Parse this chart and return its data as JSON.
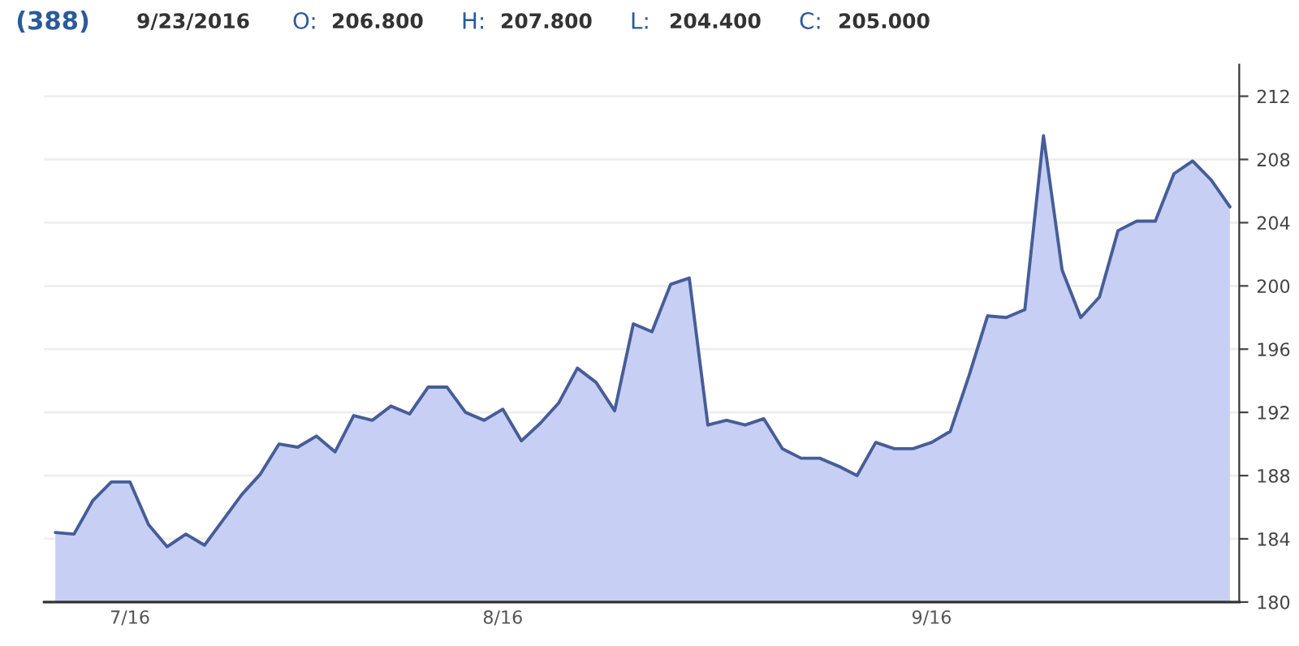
{
  "chart_data": {
    "type": "area",
    "title": "(388)",
    "annotations": [
      "9/23/2016",
      "O:",
      "206.800",
      "H:",
      "207.800",
      "L:",
      "204.400",
      "C:",
      "205.000"
    ],
    "categories": [
      null,
      null,
      null,
      null,
      "7/16",
      null,
      null,
      null,
      null,
      null,
      null,
      null,
      null,
      null,
      null,
      null,
      null,
      null,
      null,
      null,
      null,
      null,
      null,
      null,
      "8/16",
      null,
      null,
      null,
      null,
      null,
      null,
      null,
      null,
      null,
      null,
      null,
      null,
      null,
      null,
      null,
      null,
      null,
      null,
      null,
      null,
      null,
      null,
      "9/16",
      null,
      null,
      null,
      null,
      null,
      null,
      null,
      null,
      null,
      null,
      null,
      null,
      null,
      null,
      null,
      null
    ],
    "series": [
      {
        "color": "#c7cff4",
        "values": [
          184.4,
          184.3,
          186.4,
          187.6,
          187.6,
          184.9,
          183.5,
          184.3,
          183.6,
          185.2,
          186.8,
          188.1,
          190.0,
          189.8,
          190.5,
          189.5,
          191.8,
          191.5,
          192.4,
          191.9,
          193.6,
          193.6,
          192.0,
          191.5,
          192.2,
          190.2,
          191.3,
          192.6,
          194.8,
          193.9,
          192.1,
          197.6,
          197.1,
          200.1,
          200.5,
          191.2,
          191.5,
          191.2,
          191.6,
          189.7,
          189.1,
          189.1,
          188.6,
          188.0,
          190.1,
          189.7,
          189.7,
          190.1,
          190.8,
          194.3,
          198.1,
          198.0,
          198.5,
          209.5,
          201.0,
          198.0,
          199.3,
          203.5,
          204.1,
          204.1,
          207.1,
          207.9,
          206.7,
          205.0
        ]
      }
    ],
    "ylim": [
      180,
      214
    ],
    "yticks": [
      180,
      184,
      188,
      192,
      196,
      200,
      204,
      208,
      212
    ],
    "grid": "y"
  }
}
